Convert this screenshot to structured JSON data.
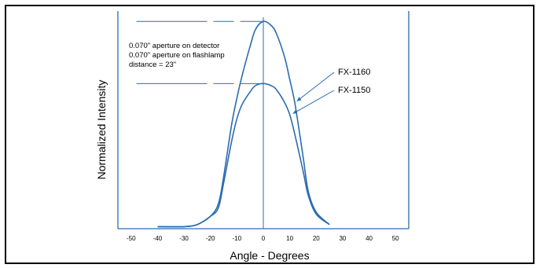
{
  "chart_data": {
    "type": "line",
    "xlabel": "Angle - Degrees",
    "ylabel": "Normalized Intensity",
    "xlim": [
      -55,
      55
    ],
    "ylim": [
      0,
      1.05
    ],
    "ticks": [
      "-50",
      "-40",
      "-30",
      "-20",
      "-10",
      "0",
      "10",
      "20",
      "30",
      "40",
      "50"
    ],
    "tick_values": [
      -50,
      -40,
      -30,
      -20,
      -10,
      0,
      10,
      20,
      30,
      40,
      50
    ],
    "grid": false,
    "legend": "annotations",
    "colors": {
      "curve": "#2b6cb0",
      "frame": "#000000",
      "axis": "#2b6cb0"
    },
    "annotation_lines": [
      "0.070\" aperture on detector",
      "0.070\" aperture on flashlamp",
      "distance = 23\""
    ],
    "peak_guides": [
      1.0,
      0.7
    ],
    "series": [
      {
        "name": "FX-1160",
        "x": [
          -40,
          -30,
          -25,
          -20,
          -17,
          -15,
          -12,
          -10,
          -8,
          -5,
          -3,
          0,
          3,
          5,
          8,
          10,
          12,
          15,
          17,
          20,
          25
        ],
        "y": [
          0.01,
          0.01,
          0.02,
          0.06,
          0.12,
          0.25,
          0.5,
          0.63,
          0.74,
          0.88,
          0.96,
          1.0,
          0.98,
          0.94,
          0.83,
          0.72,
          0.6,
          0.35,
          0.18,
          0.08,
          0.02
        ]
      },
      {
        "name": "FX-1150",
        "x": [
          -40,
          -30,
          -25,
          -20,
          -17,
          -15,
          -12,
          -10,
          -8,
          -5,
          -3,
          0,
          3,
          5,
          8,
          10,
          12,
          15,
          17,
          20,
          25
        ],
        "y": [
          0.01,
          0.01,
          0.02,
          0.06,
          0.1,
          0.22,
          0.42,
          0.53,
          0.6,
          0.66,
          0.69,
          0.7,
          0.69,
          0.67,
          0.61,
          0.55,
          0.45,
          0.28,
          0.16,
          0.07,
          0.02
        ]
      }
    ]
  }
}
